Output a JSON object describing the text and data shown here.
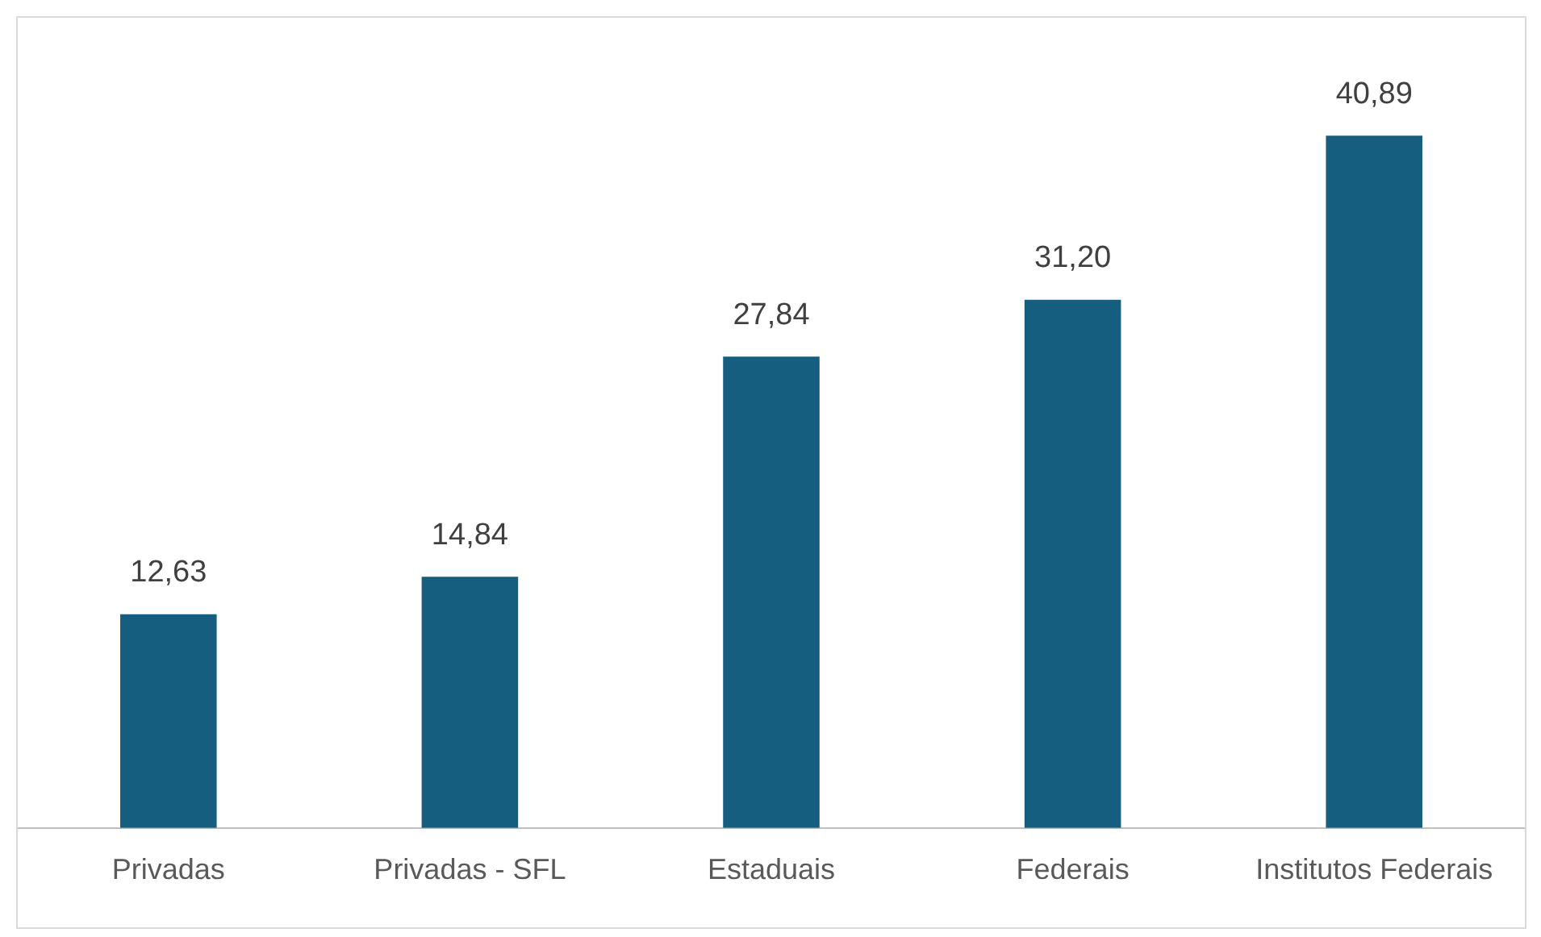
{
  "chart_data": {
    "type": "bar",
    "categories": [
      "Privadas",
      "Privadas - SFL",
      "Estaduais",
      "Federais",
      "Institutos Federais"
    ],
    "values": [
      12.63,
      14.84,
      27.84,
      31.2,
      40.89
    ],
    "value_labels": [
      "12,63",
      "14,84",
      "27,84",
      "31,20",
      "40,89"
    ],
    "color": "#165e80",
    "grid": false,
    "legend": false
  }
}
